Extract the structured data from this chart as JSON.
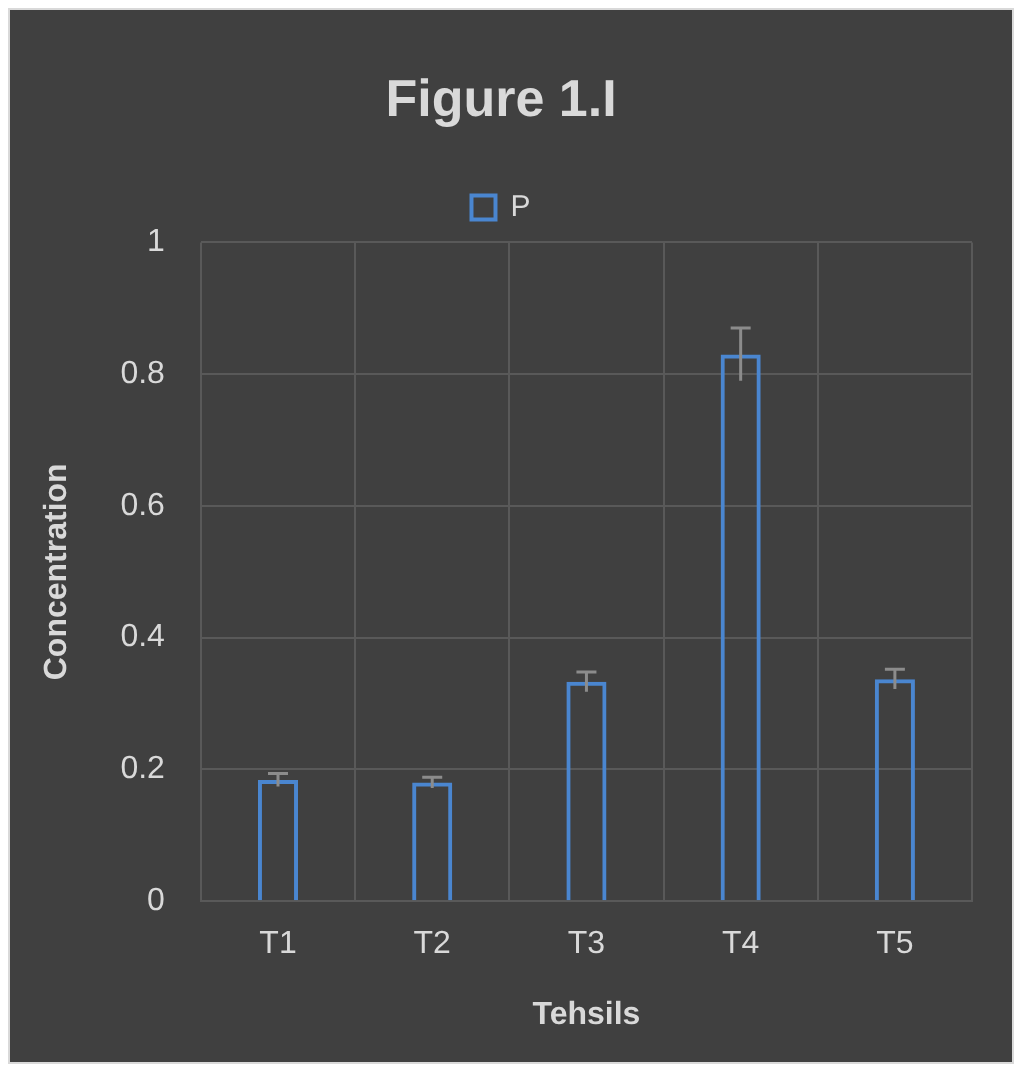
{
  "chart_data": {
    "type": "bar",
    "title": "Figure 1.I",
    "xlabel": "Tehsils",
    "ylabel": "Concentration",
    "categories": [
      "T1",
      "T2",
      "T3",
      "T4",
      "T5"
    ],
    "series": [
      {
        "name": "P",
        "color": "#4a86d0",
        "values": [
          0.184,
          0.18,
          0.333,
          0.83,
          0.337
        ],
        "errors": [
          0.01,
          0.008,
          0.015,
          0.04,
          0.015
        ]
      }
    ],
    "ylim": [
      0,
      1
    ],
    "yticks": [
      0,
      0.2,
      0.4,
      0.6,
      0.8,
      1
    ],
    "grid": true,
    "legend": "top"
  }
}
